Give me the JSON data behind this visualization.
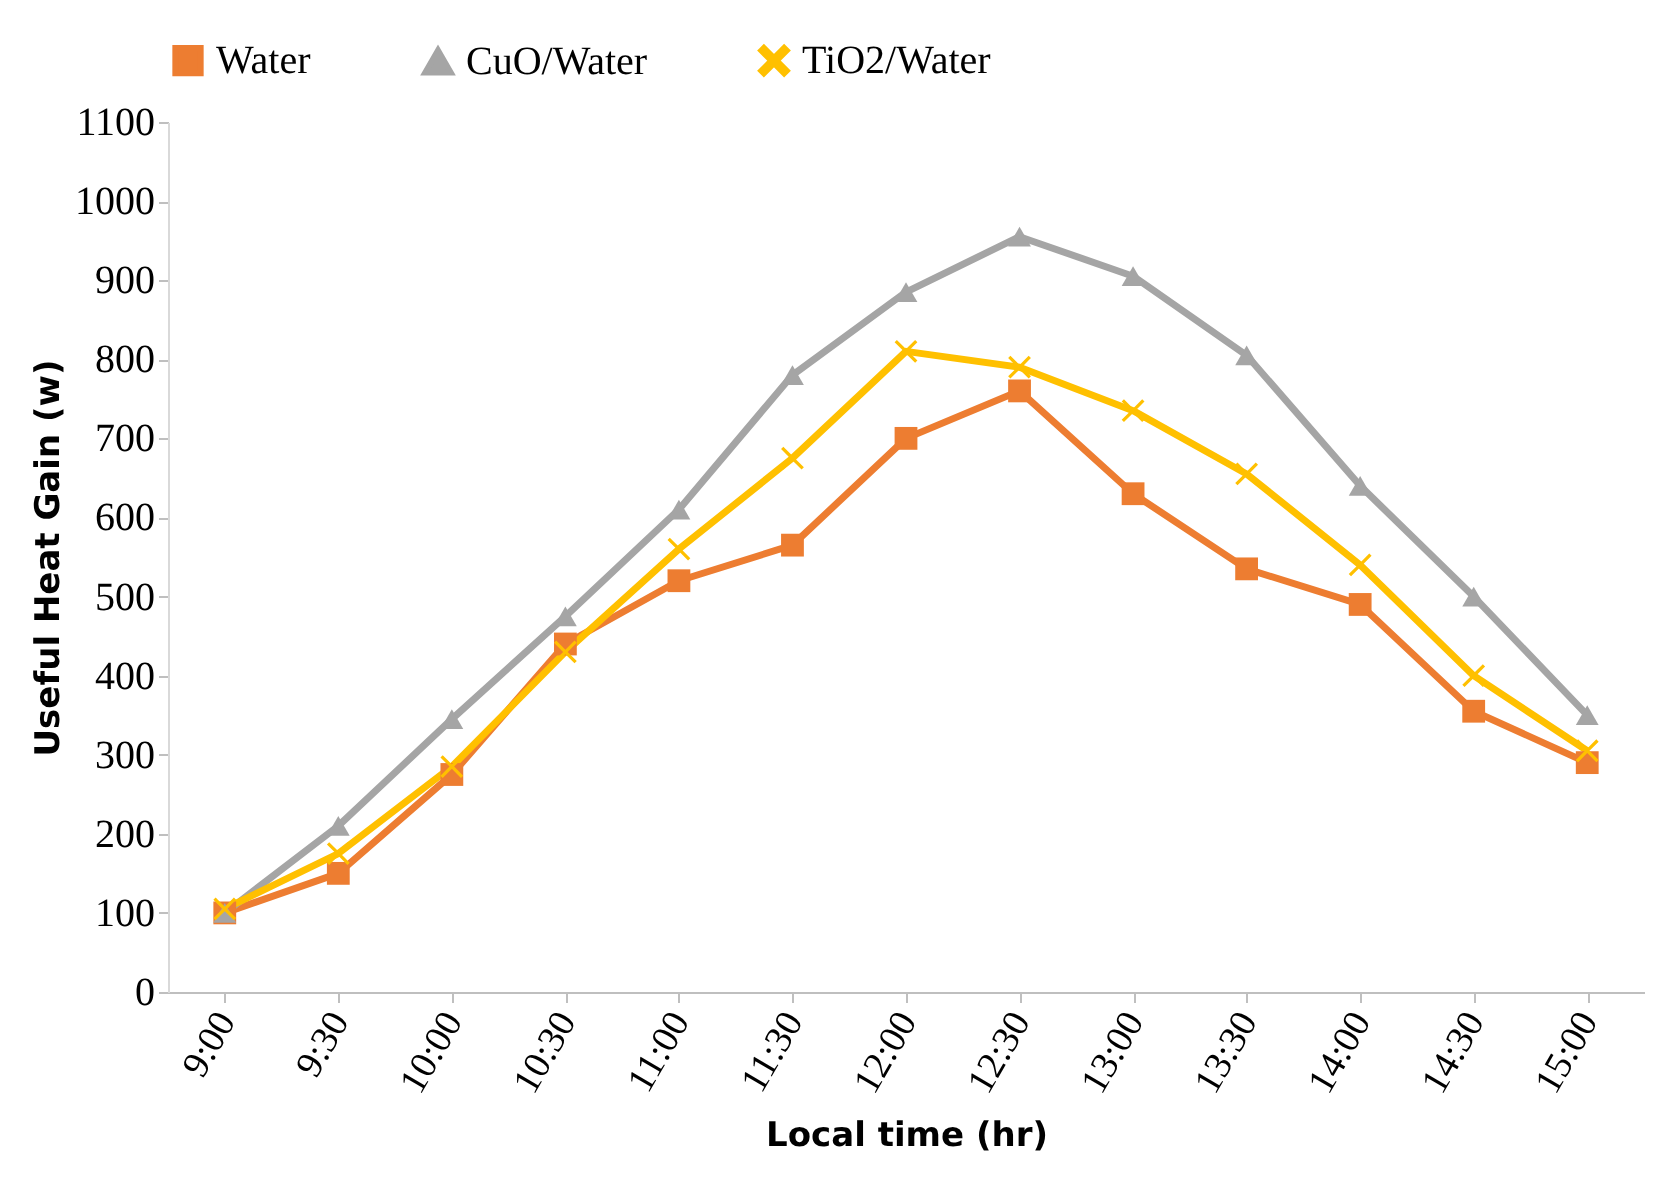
{
  "chart_data": {
    "type": "line",
    "xlabel": "Local time (hr)",
    "ylabel": "Useful Heat Gain (w)",
    "categories": [
      "9:00",
      "9:30",
      "10:00",
      "10:30",
      "11:00",
      "11:30",
      "12:00",
      "12:30",
      "13:00",
      "13:30",
      "14:00",
      "14:30",
      "15:00"
    ],
    "series": [
      {
        "name": "Water",
        "color": "#ed7d31",
        "marker": "square",
        "values": [
          100,
          150,
          275,
          440,
          520,
          565,
          700,
          760,
          630,
          535,
          490,
          355,
          290
        ]
      },
      {
        "name": "CuO/Water",
        "color": "#a5a5a5",
        "marker": "triangle",
        "values": [
          100,
          210,
          345,
          475,
          610,
          780,
          885,
          955,
          905,
          805,
          640,
          500,
          350
        ]
      },
      {
        "name": "TiO2/Water",
        "color": "#ffc000",
        "marker": "cross",
        "values": [
          105,
          175,
          285,
          430,
          560,
          675,
          810,
          790,
          735,
          655,
          540,
          400,
          305
        ]
      }
    ],
    "ylim": [
      0,
      1100
    ],
    "yticks": [
      0,
      100,
      200,
      300,
      400,
      500,
      600,
      700,
      800,
      900,
      1000,
      1100
    ],
    "grid": false,
    "legend": "top",
    "line_style": "solid"
  }
}
